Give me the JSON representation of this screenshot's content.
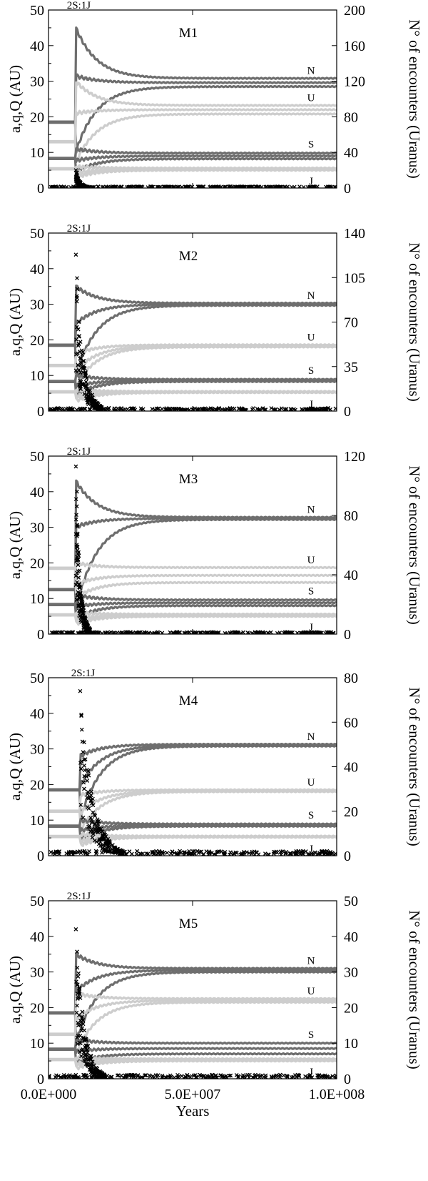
{
  "colors": {
    "dark_series": "#6e6e6e",
    "light_series": "#cdcdcd",
    "encounters": "#000000"
  },
  "chart_data": [
    {
      "type": "line",
      "title": "M1",
      "annotation": "2S:1J",
      "ylabel_left": "a,q,Q (AU)",
      "ylabel_right": "N° of encounters (Uranus)",
      "xlim": [
        0,
        100000000
      ],
      "ylim_left": [
        0,
        50
      ],
      "ylim_right": [
        0,
        200
      ],
      "yticks_left": [
        "0",
        "10",
        "20",
        "30",
        "40",
        "50"
      ],
      "yticks_right": [
        "0",
        "40",
        "80",
        "120",
        "160",
        "200"
      ],
      "instability_time": 9500000,
      "planets": [
        {
          "name": "N",
          "tone": "dark",
          "a_initial": 18.5,
          "a_final": 29.6,
          "q_final": 28.5,
          "Q_final": 30.8,
          "peak": 45
        },
        {
          "name": "U",
          "tone": "light",
          "a_initial": 13.0,
          "a_final": 22.0,
          "q_final": 20.8,
          "Q_final": 23.2,
          "peak": 30
        },
        {
          "name": "S",
          "tone": "dark",
          "a_initial": 8.3,
          "a_final": 9.0,
          "q_final": 8.2,
          "Q_final": 9.8,
          "peak": 11
        },
        {
          "name": "J",
          "tone": "light",
          "a_initial": 5.4,
          "a_final": 5.3,
          "q_final": 5.0,
          "Q_final": 5.6,
          "peak": 6
        }
      ],
      "encounters": {
        "peak": 20,
        "duration": 5000000,
        "background": 1
      }
    },
    {
      "type": "line",
      "title": "M2",
      "annotation": "2S:1J",
      "ylabel_left": "a,q,Q (AU)",
      "ylabel_right": "N° of encounters (Uranus)",
      "xlim": [
        0,
        100000000
      ],
      "ylim_left": [
        0,
        50
      ],
      "ylim_right": [
        0,
        140
      ],
      "yticks_left": [
        "0",
        "10",
        "20",
        "30",
        "40",
        "50"
      ],
      "yticks_right": [
        "0",
        "35",
        "70",
        "105",
        "140"
      ],
      "instability_time": 9500000,
      "planets": [
        {
          "name": "N",
          "tone": "dark",
          "a_initial": 18.5,
          "a_final": 30.0,
          "q_final": 29.7,
          "Q_final": 30.3,
          "peak": 35
        },
        {
          "name": "U",
          "tone": "light",
          "a_initial": 12.8,
          "a_final": 18.3,
          "q_final": 18.0,
          "Q_final": 18.6,
          "peak": 16
        },
        {
          "name": "S",
          "tone": "dark",
          "a_initial": 8.3,
          "a_final": 8.6,
          "q_final": 8.3,
          "Q_final": 8.9,
          "peak": 10
        },
        {
          "name": "J",
          "tone": "light",
          "a_initial": 5.4,
          "a_final": 5.3,
          "q_final": 5.2,
          "Q_final": 5.5,
          "peak": 6
        }
      ],
      "encounters": {
        "peak": 123,
        "duration": 9000000,
        "background": 2
      }
    },
    {
      "type": "line",
      "title": "M3",
      "annotation": "2S:1J",
      "ylabel_left": "a,q,Q (AU)",
      "ylabel_right": "N° of encounters (Uranus)",
      "xlim": [
        0,
        100000000
      ],
      "ylim_left": [
        0,
        50
      ],
      "ylim_right": [
        0,
        120
      ],
      "yticks_left": [
        "0",
        "10",
        "20",
        "30",
        "40",
        "50"
      ],
      "yticks_right": [
        "0",
        "40",
        "80",
        "120"
      ],
      "instability_time": 9500000,
      "planets": [
        {
          "name": "N",
          "tone": "dark",
          "a_initial": 12.5,
          "a_final": 32.5,
          "q_final": 32.2,
          "Q_final": 32.8,
          "peak": 43
        },
        {
          "name": "U",
          "tone": "light",
          "a_initial": 18.5,
          "a_final": 16.5,
          "q_final": 14.5,
          "Q_final": 18.7,
          "peak": 20
        },
        {
          "name": "S",
          "tone": "dark",
          "a_initial": 8.3,
          "a_final": 8.8,
          "q_final": 8.0,
          "Q_final": 9.6,
          "peak": 11
        },
        {
          "name": "J",
          "tone": "light",
          "a_initial": 5.4,
          "a_final": 5.3,
          "q_final": 5.0,
          "Q_final": 5.6,
          "peak": 6
        }
      ],
      "encounters": {
        "peak": 113,
        "duration": 5000000,
        "background": 1
      }
    },
    {
      "type": "line",
      "title": "M4",
      "annotation": "2S:1J",
      "ylabel_left": "a,q,Q (AU)",
      "ylabel_right": "N° of encounters (Uranus)",
      "xlim": [
        0,
        100000000
      ],
      "ylim_left": [
        0,
        50
      ],
      "ylim_right": [
        0,
        80
      ],
      "yticks_left": [
        "0",
        "10",
        "20",
        "30",
        "40",
        "50"
      ],
      "yticks_right": [
        "0",
        "20",
        "40",
        "60",
        "80"
      ],
      "instability_time": 11000000,
      "planets": [
        {
          "name": "N",
          "tone": "dark",
          "a_initial": 18.5,
          "a_final": 31.0,
          "q_final": 30.8,
          "Q_final": 31.3,
          "peak": 28
        },
        {
          "name": "U",
          "tone": "light",
          "a_initial": 12.5,
          "a_final": 18.2,
          "q_final": 18.0,
          "Q_final": 18.5,
          "peak": 17
        },
        {
          "name": "S",
          "tone": "dark",
          "a_initial": 8.3,
          "a_final": 8.6,
          "q_final": 8.3,
          "Q_final": 8.9,
          "peak": 10
        },
        {
          "name": "J",
          "tone": "light",
          "a_initial": 5.4,
          "a_final": 5.3,
          "q_final": 5.2,
          "Q_final": 5.5,
          "peak": 6
        }
      ],
      "encounters": {
        "peak": 74,
        "duration": 15000000,
        "background": 2
      }
    },
    {
      "type": "line",
      "title": "M5",
      "annotation": "2S:1J",
      "ylabel_left": "a,q,Q (AU)",
      "ylabel_right": "N° of encounters (Uranus)",
      "xlabel": "Years",
      "xticks": [
        "0.0E+000",
        "5.0E+007",
        "1.0E+008"
      ],
      "xlim": [
        0,
        100000000
      ],
      "ylim_left": [
        0,
        50
      ],
      "ylim_right": [
        0,
        50
      ],
      "yticks_left": [
        "0",
        "10",
        "20",
        "30",
        "40",
        "50"
      ],
      "yticks_right": [
        "0",
        "10",
        "20",
        "30",
        "40",
        "50"
      ],
      "instability_time": 9500000,
      "planets": [
        {
          "name": "N",
          "tone": "dark",
          "a_initial": 18.5,
          "a_final": 30.5,
          "q_final": 30.0,
          "Q_final": 31.0,
          "peak": 35
        },
        {
          "name": "U",
          "tone": "light",
          "a_initial": 12.5,
          "a_final": 22.0,
          "q_final": 21.5,
          "Q_final": 22.5,
          "peak": 24
        },
        {
          "name": "S",
          "tone": "dark",
          "a_initial": 8.3,
          "a_final": 8.5,
          "q_final": 7.0,
          "Q_final": 10.0,
          "peak": 11
        },
        {
          "name": "J",
          "tone": "light",
          "a_initial": 5.4,
          "a_final": 5.3,
          "q_final": 5.0,
          "Q_final": 5.6,
          "peak": 6
        }
      ],
      "encounters": {
        "peak": 42,
        "duration": 10000000,
        "background": 1
      }
    }
  ]
}
